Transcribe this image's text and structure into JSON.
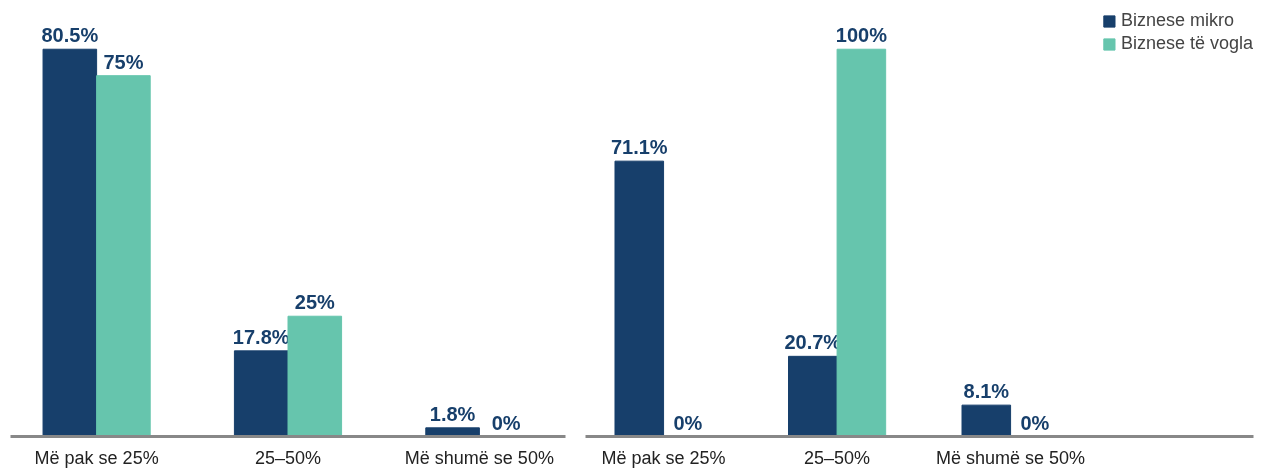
{
  "chart_data": [
    {
      "type": "bar",
      "tick_labels": "x",
      "categories": [
        "Më pak se 25%",
        "25–50%",
        "Më shumë se 50%"
      ],
      "series": [
        {
          "color": "#173f6b",
          "values": [
            80.5,
            17.8,
            1.8
          ],
          "value_labels": [
            "80.5%",
            "17.8%",
            "1.8%"
          ]
        },
        {
          "color": "#66c5ad",
          "values": [
            75,
            25,
            0
          ],
          "value_labels": [
            "75%",
            "25%",
            "0%"
          ]
        }
      ]
    },
    {
      "type": "bar",
      "tick_labels": "x",
      "categories": [
        "Më pak se 25%",
        "25–50%",
        "Më shumë se 50%"
      ],
      "legend": "top right",
      "series": [
        {
          "name": "Biznese mikro",
          "color": "#173f6b",
          "values": [
            71.1,
            20.7,
            8.1
          ],
          "value_labels": [
            "71.1%",
            "20.7%",
            "8.1%"
          ]
        },
        {
          "name": "Biznese të vogla",
          "color": "#66c5ad",
          "values": [
            0,
            100,
            0
          ],
          "value_labels": [
            "0%",
            "100%",
            "0%"
          ]
        }
      ]
    }
  ]
}
